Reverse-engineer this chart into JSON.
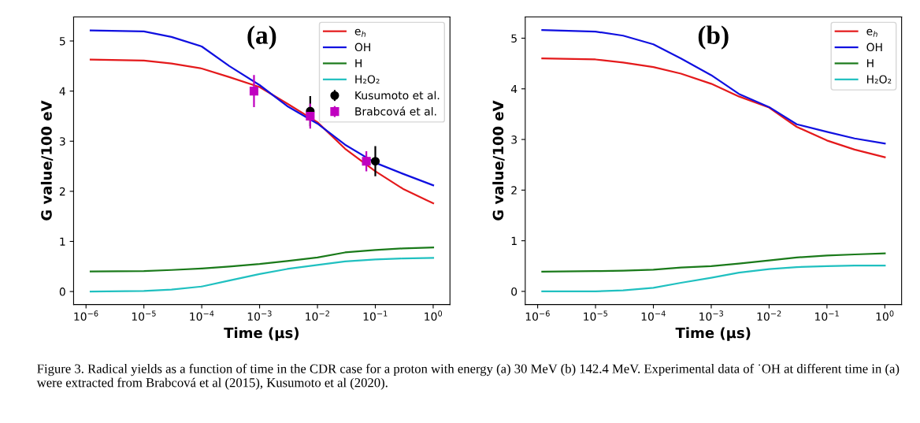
{
  "chart_data": [
    {
      "type": "line",
      "title": "(a)",
      "xlabel": "Time (μs)",
      "ylabel": "G value/100 eV",
      "log": "x",
      "grid": false,
      "legend": "top right",
      "x": [
        1.2e-06,
        1e-05,
        3e-05,
        0.0001,
        0.0003,
        0.001,
        0.003,
        0.01,
        0.03,
        0.1,
        0.3,
        1
      ],
      "xlim": [
        6.1e-07,
        1.95
      ],
      "ylim": [
        -0.26,
        5.48
      ],
      "xticks": [
        {
          "value": 1e-06,
          "label": "10$^{−6}$"
        },
        {
          "value": 1e-05,
          "label": "10$^{−5}$"
        },
        {
          "value": 0.0001,
          "label": "10$^{−4}$"
        },
        {
          "value": 0.001,
          "label": "10$^{−3}$"
        },
        {
          "value": 0.01,
          "label": "10$^{−2}$"
        },
        {
          "value": 0.1,
          "label": "10$^{−1}$"
        },
        {
          "value": 1,
          "label": "10$^{0}$"
        }
      ],
      "yticks": [
        0,
        1,
        2,
        3,
        4,
        5
      ],
      "series": [
        {
          "name": "e$_{h}$",
          "color": "#e41a1c",
          "values": [
            4.63,
            4.61,
            4.55,
            4.45,
            4.28,
            4.08,
            3.75,
            3.38,
            2.85,
            2.4,
            2.05,
            1.76
          ]
        },
        {
          "name": "OH",
          "color": "#1010e0",
          "values": [
            5.21,
            5.19,
            5.08,
            4.89,
            4.5,
            4.12,
            3.7,
            3.35,
            2.93,
            2.57,
            2.35,
            2.12
          ]
        },
        {
          "name": "H",
          "color": "#1a7a1a",
          "values": [
            0.4,
            0.41,
            0.43,
            0.46,
            0.5,
            0.55,
            0.61,
            0.68,
            0.78,
            0.83,
            0.86,
            0.88
          ]
        },
        {
          "name": "H₂O₂",
          "color": "#20c0c0",
          "values": [
            0.0,
            0.01,
            0.04,
            0.1,
            0.22,
            0.35,
            0.45,
            0.53,
            0.6,
            0.64,
            0.66,
            0.67
          ]
        },
        {
          "name": "Kusumoto et al.",
          "type": "scatter",
          "marker": "circle",
          "color": "#000000",
          "x": [
            0.0075,
            0.1
          ],
          "values": [
            3.6,
            2.6
          ],
          "errors": [
            0.3,
            0.3
          ]
        },
        {
          "name": "Brabcová et al.",
          "type": "scatter",
          "marker": "square",
          "color": "#c000c0",
          "x": [
            0.0008,
            0.0075,
            0.07
          ],
          "values": [
            4.0,
            3.5,
            2.6
          ],
          "errors": [
            0.32,
            0.25,
            0.2
          ]
        }
      ],
      "annotations": [
        "Figure 3. Radical yields as a function of time in the CDR case for a proton with energy (a) 30 MeV (b) 142.4 MeV. Experimental data of ˙OH at different time in (a) were extracted from Brabcová et al (2015), Kusumoto et al (2020)."
      ]
    },
    {
      "type": "line",
      "title": "(b)",
      "xlabel": "Time (μs)",
      "ylabel": "G value/100 eV",
      "log": "x",
      "grid": false,
      "legend": "top right",
      "x": [
        1.2e-06,
        1e-05,
        3e-05,
        0.0001,
        0.0003,
        0.001,
        0.003,
        0.01,
        0.03,
        0.1,
        0.3,
        1
      ],
      "xlim": [
        6.1e-07,
        1.95
      ],
      "ylim": [
        -0.26,
        5.42
      ],
      "xticks": [
        {
          "value": 1e-06,
          "label": "10$^{−6}$"
        },
        {
          "value": 1e-05,
          "label": "10$^{−5}$"
        },
        {
          "value": 0.0001,
          "label": "10$^{−4}$"
        },
        {
          "value": 0.001,
          "label": "10$^{−3}$"
        },
        {
          "value": 0.01,
          "label": "10$^{−2}$"
        },
        {
          "value": 0.1,
          "label": "10$^{−1}$"
        },
        {
          "value": 1,
          "label": "10$^{0}$"
        }
      ],
      "yticks": [
        0,
        1,
        2,
        3,
        4,
        5
      ],
      "series": [
        {
          "name": "e$_{h}$",
          "color": "#e41a1c",
          "values": [
            4.6,
            4.58,
            4.52,
            4.43,
            4.3,
            4.1,
            3.85,
            3.63,
            3.25,
            2.98,
            2.8,
            2.65
          ]
        },
        {
          "name": "OH",
          "color": "#1010e0",
          "values": [
            5.16,
            5.13,
            5.05,
            4.88,
            4.6,
            4.27,
            3.9,
            3.64,
            3.3,
            3.15,
            3.02,
            2.92
          ]
        },
        {
          "name": "H",
          "color": "#1a7a1a",
          "values": [
            0.39,
            0.4,
            0.41,
            0.43,
            0.47,
            0.5,
            0.55,
            0.61,
            0.67,
            0.71,
            0.73,
            0.75
          ]
        },
        {
          "name": "H₂O₂",
          "color": "#20c0c0",
          "values": [
            0.0,
            0.0,
            0.02,
            0.07,
            0.17,
            0.27,
            0.37,
            0.44,
            0.48,
            0.5,
            0.51,
            0.51
          ]
        }
      ]
    }
  ]
}
